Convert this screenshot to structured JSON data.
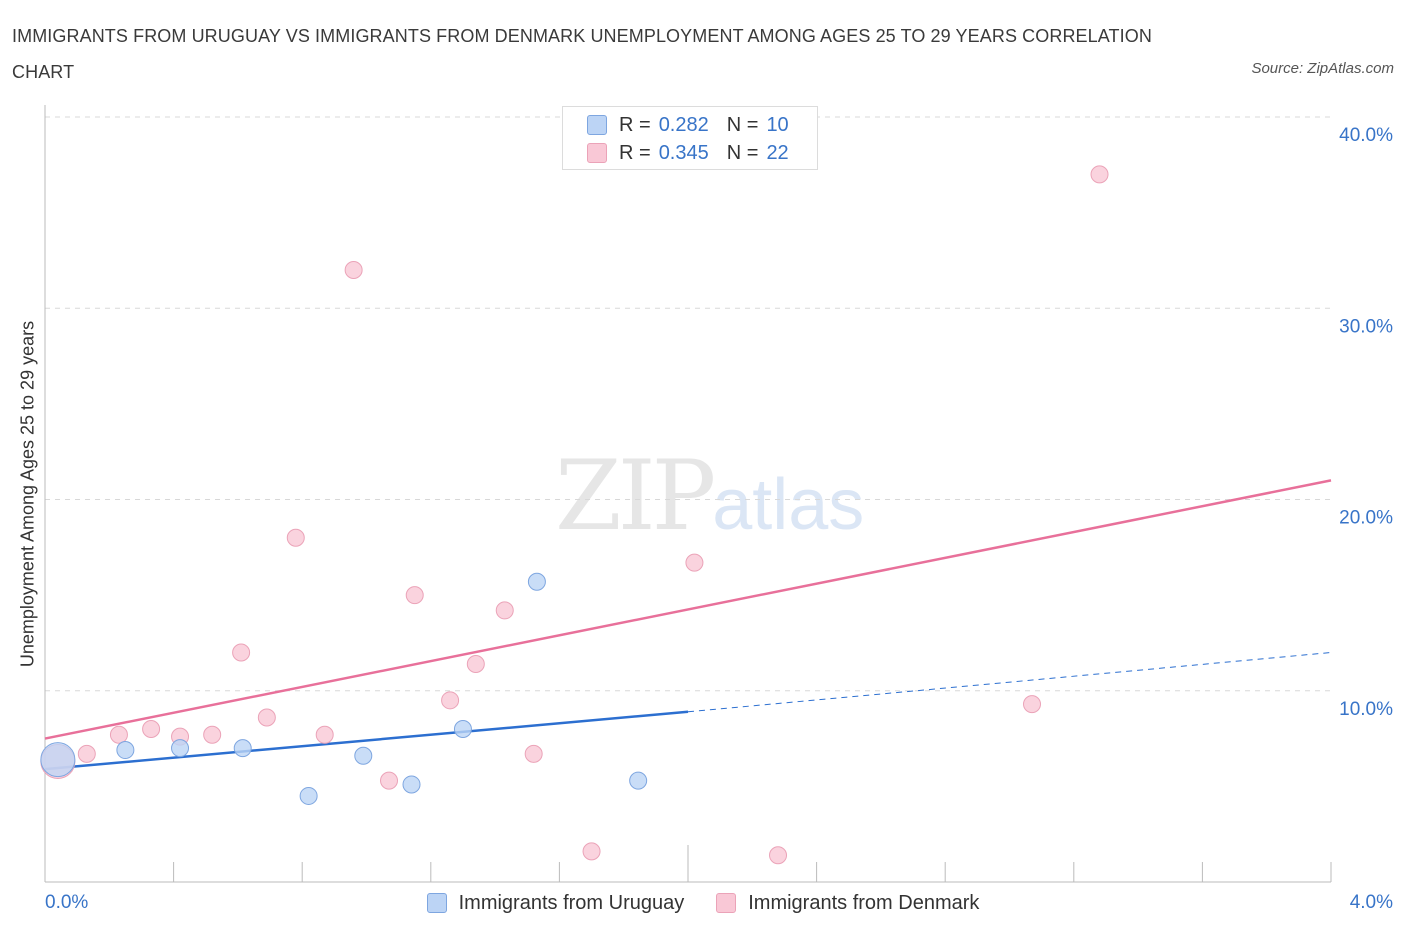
{
  "title": "IMMIGRANTS FROM URUGUAY VS IMMIGRANTS FROM DENMARK UNEMPLOYMENT AMONG AGES 25 TO 29 YEARS CORRELATION CHART",
  "source": "Source: ZipAtlas.com",
  "watermark": {
    "zip": "ZIP",
    "atlas": "atlas"
  },
  "legend_top": {
    "r_label": "R =",
    "n_label": "N =",
    "rows": [
      {
        "r": "0.282",
        "n": "10"
      },
      {
        "r": "0.345",
        "n": "22"
      }
    ]
  },
  "colors": {
    "uruguay_fill": "#bcd4f5",
    "uruguay_stroke": "#7ea6e0",
    "uruguay_line": "#2c6fd0",
    "denmark_fill": "#f9c8d6",
    "denmark_stroke": "#eba3b8",
    "denmark_line": "#e8709a",
    "axis_text": "#3874c8",
    "grid": "#d8d8d8"
  },
  "chart_data": {
    "type": "scatter",
    "title": "IMMIGRANTS FROM URUGUAY VS IMMIGRANTS FROM DENMARK UNEMPLOYMENT AMONG AGES 25 TO 29 YEARS CORRELATION CHART",
    "xlabel": "",
    "ylabel": "Unemployment Among Ages 25 to 29 years",
    "xlim": [
      0,
      4
    ],
    "ylim": [
      0,
      40
    ],
    "x_tick_labels": [
      {
        "value": 0,
        "label": "0.0%"
      },
      {
        "value": 4,
        "label": "4.0%"
      }
    ],
    "y_tick_labels": [
      {
        "value": 10,
        "label": "10.0%"
      },
      {
        "value": 20,
        "label": "20.0%"
      },
      {
        "value": 30,
        "label": "30.0%"
      },
      {
        "value": 40,
        "label": "40.0%"
      }
    ],
    "series": [
      {
        "name": "Immigrants from Uruguay",
        "points": [
          {
            "x": 0.04,
            "y": 6.4,
            "large": true
          },
          {
            "x": 0.25,
            "y": 6.9
          },
          {
            "x": 0.42,
            "y": 7.0
          },
          {
            "x": 0.615,
            "y": 7.0
          },
          {
            "x": 0.82,
            "y": 4.5
          },
          {
            "x": 0.99,
            "y": 6.6
          },
          {
            "x": 1.14,
            "y": 5.1
          },
          {
            "x": 1.3,
            "y": 8.0
          },
          {
            "x": 1.53,
            "y": 15.7
          },
          {
            "x": 1.845,
            "y": 5.3
          }
        ],
        "trend": {
          "x0": 0.0,
          "y0": 5.9,
          "x1": 2.0,
          "y1": 8.9,
          "x_dash_end": 4.0,
          "y_dash_end": 12.0
        }
      },
      {
        "name": "Immigrants from Denmark",
        "points": [
          {
            "x": 0.04,
            "y": 6.3,
            "large": true
          },
          {
            "x": 0.13,
            "y": 6.7
          },
          {
            "x": 0.23,
            "y": 7.7
          },
          {
            "x": 0.33,
            "y": 8.0
          },
          {
            "x": 0.42,
            "y": 7.6
          },
          {
            "x": 0.52,
            "y": 7.7
          },
          {
            "x": 0.61,
            "y": 12.0
          },
          {
            "x": 0.69,
            "y": 8.6
          },
          {
            "x": 0.78,
            "y": 18.0
          },
          {
            "x": 0.87,
            "y": 7.7
          },
          {
            "x": 0.96,
            "y": 32.0
          },
          {
            "x": 1.07,
            "y": 5.3
          },
          {
            "x": 1.15,
            "y": 15.0
          },
          {
            "x": 1.26,
            "y": 9.5
          },
          {
            "x": 1.34,
            "y": 11.4
          },
          {
            "x": 1.43,
            "y": 14.2
          },
          {
            "x": 1.52,
            "y": 6.7
          },
          {
            "x": 1.7,
            "y": 1.6
          },
          {
            "x": 2.02,
            "y": 16.7
          },
          {
            "x": 2.28,
            "y": 1.4
          },
          {
            "x": 3.07,
            "y": 9.3
          },
          {
            "x": 3.28,
            "y": 37.0
          }
        ],
        "trend": {
          "x0": 0.0,
          "y0": 7.5,
          "x1": 4.0,
          "y1": 21.0
        }
      }
    ]
  }
}
